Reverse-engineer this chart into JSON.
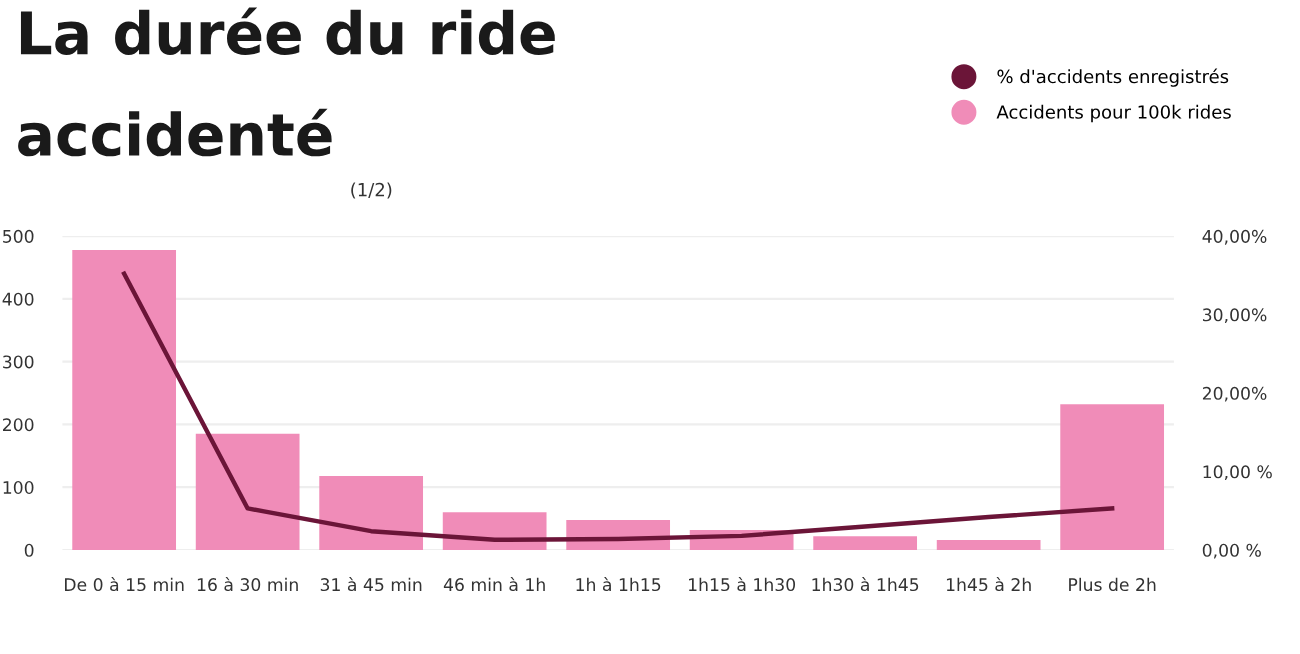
{
  "chart_data": {
    "type": "bar",
    "title": "La durée du ride accidenté",
    "subtitle": "(1/2)",
    "categories": [
      "De 0 à 15 min",
      "16 à 30 min",
      "31 à 45 min",
      "46 min à 1h",
      "1h à 1h15",
      "1h15 à 1h30",
      "1h30 à 1h45",
      "1h45 à 2h",
      "Plus de 2h"
    ],
    "series": [
      {
        "name": "% d'accidents enregistrés",
        "type": "line",
        "axis": "y2",
        "color": "#6b1538",
        "values": [
          35.2,
          5.3,
          2.4,
          1.3,
          1.4,
          1.8,
          3.0,
          4.2,
          5.3
        ]
      },
      {
        "name": "Accidents pour 100k rides",
        "color": "#f08cb8",
        "values": [
          478,
          185,
          118,
          60,
          48,
          32,
          22,
          16,
          232
        ]
      }
    ],
    "ylim": [
      0,
      500
    ],
    "yticks": [
      0,
      100,
      200,
      300,
      400,
      500
    ],
    "y2lim": [
      0,
      40
    ],
    "y2ticks": [
      {
        "value": 0,
        "label": "0,00 %"
      },
      {
        "value": 10,
        "label": "10,00 %"
      },
      {
        "value": 20,
        "label": "20,00%"
      },
      {
        "value": 30,
        "label": "30,00%"
      },
      {
        "value": 40,
        "label": "40,00%"
      }
    ],
    "grid": "y",
    "legend": "top right",
    "marker": "none",
    "line_style": "solid"
  }
}
